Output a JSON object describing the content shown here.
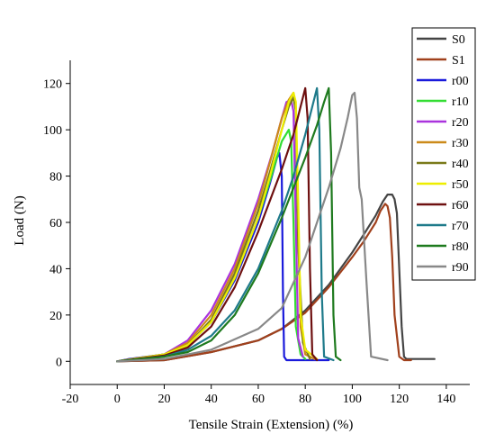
{
  "chart_data": {
    "type": "line",
    "xlabel": "Tensile Strain (Extension) (%)",
    "ylabel": "Load (N)",
    "xlim": [
      -20,
      150
    ],
    "ylim": [
      -10,
      130
    ],
    "xticks": [
      -20,
      0,
      20,
      40,
      60,
      80,
      100,
      120,
      140
    ],
    "yticks": [
      0,
      20,
      40,
      60,
      80,
      100,
      120
    ],
    "grid": false,
    "legend_position": "right",
    "series": [
      {
        "name": "S0",
        "color": "#444444",
        "x": [
          0,
          20,
          40,
          60,
          70,
          80,
          90,
          100,
          105,
          110,
          113,
          115,
          117,
          118,
          119,
          120,
          121,
          122,
          123,
          125,
          130,
          135
        ],
        "y": [
          0,
          0.5,
          4,
          9,
          14,
          22,
          33,
          47,
          55,
          63,
          69,
          72,
          72,
          70,
          64,
          40,
          15,
          2,
          1,
          1,
          1,
          1
        ]
      },
      {
        "name": "S1",
        "color": "#a0401c",
        "x": [
          0,
          20,
          40,
          60,
          70,
          80,
          90,
          100,
          105,
          110,
          112,
          114,
          115,
          116,
          117,
          118,
          120,
          122,
          125
        ],
        "y": [
          0,
          0.5,
          4,
          9,
          14,
          21,
          32,
          45,
          52,
          60,
          65,
          68,
          67,
          62,
          45,
          20,
          2,
          0.5,
          0.5
        ]
      },
      {
        "name": "r00",
        "color": "#1a1adb",
        "x": [
          0,
          5,
          20,
          30,
          40,
          50,
          60,
          65,
          68,
          69,
          70,
          70.5,
          71,
          72,
          80,
          90
        ],
        "y": [
          0,
          1,
          3,
          7,
          17,
          35,
          60,
          77,
          88,
          90,
          80,
          30,
          2,
          0.5,
          0.5,
          0.5
        ]
      },
      {
        "name": "r10",
        "color": "#33dd33",
        "x": [
          0,
          20,
          30,
          40,
          50,
          60,
          65,
          70,
          73,
          74,
          75,
          76,
          78,
          80
        ],
        "y": [
          0,
          3,
          7,
          17,
          36,
          62,
          78,
          95,
          100,
          95,
          60,
          15,
          3,
          1
        ]
      },
      {
        "name": "r20",
        "color": "#aa33dd",
        "x": [
          0,
          20,
          30,
          40,
          50,
          60,
          66,
          70,
          72,
          74,
          75,
          76,
          77,
          79
        ],
        "y": [
          0,
          3,
          9,
          22,
          42,
          70,
          90,
          105,
          112,
          113,
          108,
          60,
          10,
          2
        ]
      },
      {
        "name": "r30",
        "color": "#cc8a1a",
        "x": [
          0,
          20,
          30,
          40,
          50,
          60,
          65,
          70,
          73,
          75,
          76,
          77,
          78,
          80,
          84
        ],
        "y": [
          0,
          3,
          8,
          20,
          40,
          68,
          86,
          105,
          113,
          116,
          110,
          60,
          15,
          3,
          1
        ]
      },
      {
        "name": "r40",
        "color": "#7a7a1a",
        "x": [
          0,
          20,
          30,
          40,
          50,
          60,
          65,
          70,
          73,
          75,
          76,
          77,
          79,
          82
        ],
        "y": [
          0,
          3,
          7,
          18,
          38,
          65,
          82,
          100,
          110,
          114,
          108,
          50,
          8,
          1
        ]
      },
      {
        "name": "r50",
        "color": "#eeee00",
        "x": [
          0,
          20,
          30,
          40,
          50,
          60,
          65,
          70,
          73,
          75,
          76,
          77,
          78,
          80,
          85
        ],
        "y": [
          0,
          3,
          7,
          17,
          36,
          62,
          80,
          100,
          112,
          116,
          112,
          70,
          20,
          5,
          1
        ]
      },
      {
        "name": "r60",
        "color": "#6e1010",
        "x": [
          0,
          20,
          30,
          40,
          50,
          60,
          70,
          75,
          78,
          80,
          81,
          82,
          83,
          85
        ],
        "y": [
          0,
          2.5,
          6,
          15,
          32,
          56,
          83,
          98,
          110,
          118,
          105,
          40,
          3,
          0.5
        ]
      },
      {
        "name": "r70",
        "color": "#1e7a8a",
        "x": [
          0,
          20,
          30,
          40,
          50,
          60,
          70,
          75,
          80,
          83,
          85,
          86,
          87,
          88,
          92
        ],
        "y": [
          0,
          2,
          5,
          11,
          22,
          40,
          65,
          80,
          98,
          110,
          118,
          100,
          30,
          2,
          0.5
        ]
      },
      {
        "name": "r80",
        "color": "#1e7a1e",
        "x": [
          0,
          20,
          30,
          40,
          50,
          60,
          70,
          80,
          85,
          88,
          90,
          91,
          92,
          93,
          95
        ],
        "y": [
          0,
          2,
          4,
          9,
          20,
          38,
          62,
          88,
          102,
          112,
          118,
          90,
          20,
          2,
          0.5
        ]
      },
      {
        "name": "r90",
        "color": "#888888",
        "x": [
          0,
          20,
          40,
          60,
          70,
          80,
          90,
          95,
          98,
          100,
          101,
          102,
          103,
          104,
          106,
          108,
          115
        ],
        "y": [
          0,
          1,
          5,
          14,
          23,
          45,
          75,
          92,
          105,
          115,
          116,
          105,
          75,
          70,
          35,
          2,
          0.5
        ]
      }
    ]
  }
}
